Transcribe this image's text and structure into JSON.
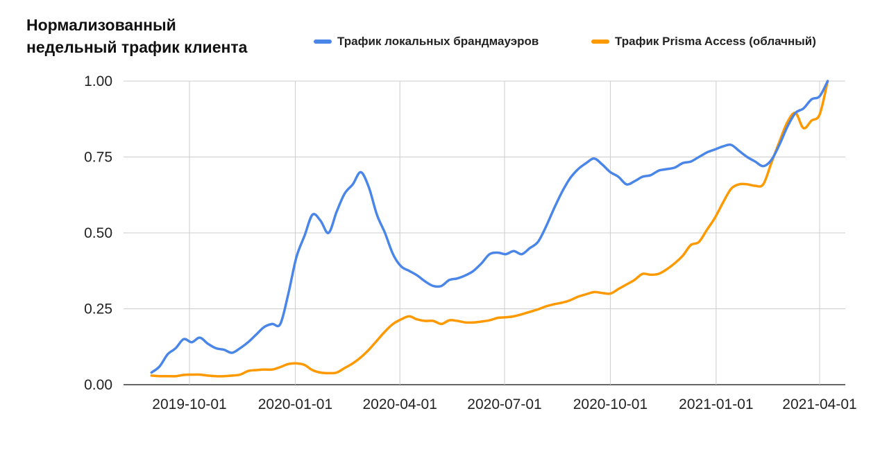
{
  "chart_data": {
    "type": "line",
    "title_lines": [
      "Нормализованный",
      "недельный трафик клиента"
    ],
    "xlabel": "",
    "ylabel": "",
    "x_dates": [
      "2019-08-29",
      "2019-09-05",
      "2019-09-12",
      "2019-09-19",
      "2019-09-26",
      "2019-10-03",
      "2019-10-10",
      "2019-10-17",
      "2019-10-24",
      "2019-10-31",
      "2019-11-07",
      "2019-11-14",
      "2019-11-21",
      "2019-11-28",
      "2019-12-05",
      "2019-12-12",
      "2019-12-19",
      "2019-12-26",
      "2020-01-02",
      "2020-01-09",
      "2020-01-16",
      "2020-01-23",
      "2020-01-30",
      "2020-02-06",
      "2020-02-13",
      "2020-02-20",
      "2020-02-27",
      "2020-03-05",
      "2020-03-12",
      "2020-03-19",
      "2020-03-26",
      "2020-04-02",
      "2020-04-09",
      "2020-04-16",
      "2020-04-23",
      "2020-04-30",
      "2020-05-07",
      "2020-05-14",
      "2020-05-21",
      "2020-05-28",
      "2020-06-04",
      "2020-06-11",
      "2020-06-18",
      "2020-06-25",
      "2020-07-02",
      "2020-07-09",
      "2020-07-16",
      "2020-07-23",
      "2020-07-30",
      "2020-08-06",
      "2020-08-13",
      "2020-08-20",
      "2020-08-27",
      "2020-09-03",
      "2020-09-10",
      "2020-09-17",
      "2020-09-24",
      "2020-10-01",
      "2020-10-08",
      "2020-10-15",
      "2020-10-22",
      "2020-10-29",
      "2020-11-05",
      "2020-11-12",
      "2020-11-19",
      "2020-11-26",
      "2020-12-03",
      "2020-12-10",
      "2020-12-17",
      "2020-12-24",
      "2020-12-31",
      "2021-01-07",
      "2021-01-14",
      "2021-01-21",
      "2021-01-28",
      "2021-02-04",
      "2021-02-11",
      "2021-02-18",
      "2021-02-25",
      "2021-03-04",
      "2021-03-11",
      "2021-03-18",
      "2021-03-25",
      "2021-04-01",
      "2021-04-08"
    ],
    "series": [
      {
        "name": "Трафик локальных брандмауэров",
        "color": "#4a86e8",
        "values": [
          0.04,
          0.06,
          0.1,
          0.12,
          0.15,
          0.14,
          0.155,
          0.135,
          0.12,
          0.115,
          0.105,
          0.12,
          0.14,
          0.165,
          0.19,
          0.2,
          0.2,
          0.3,
          0.42,
          0.49,
          0.56,
          0.54,
          0.5,
          0.57,
          0.63,
          0.66,
          0.7,
          0.65,
          0.56,
          0.5,
          0.43,
          0.39,
          0.375,
          0.36,
          0.34,
          0.325,
          0.325,
          0.345,
          0.35,
          0.36,
          0.375,
          0.4,
          0.43,
          0.435,
          0.43,
          0.44,
          0.43,
          0.45,
          0.47,
          0.52,
          0.58,
          0.635,
          0.68,
          0.71,
          0.73,
          0.745,
          0.725,
          0.7,
          0.685,
          0.66,
          0.67,
          0.685,
          0.69,
          0.705,
          0.71,
          0.715,
          0.73,
          0.735,
          0.75,
          0.765,
          0.775,
          0.785,
          0.79,
          0.77,
          0.75,
          0.735,
          0.72,
          0.74,
          0.79,
          0.85,
          0.895,
          0.91,
          0.94,
          0.95,
          1.0
        ]
      },
      {
        "name": "Трафик Prisma Access (облачный)",
        "color": "#ff9900",
        "values": [
          0.03,
          0.028,
          0.028,
          0.028,
          0.032,
          0.033,
          0.033,
          0.03,
          0.028,
          0.028,
          0.03,
          0.033,
          0.045,
          0.048,
          0.05,
          0.05,
          0.058,
          0.068,
          0.07,
          0.065,
          0.048,
          0.04,
          0.038,
          0.04,
          0.055,
          0.07,
          0.09,
          0.115,
          0.145,
          0.175,
          0.2,
          0.215,
          0.225,
          0.215,
          0.21,
          0.21,
          0.2,
          0.212,
          0.21,
          0.205,
          0.205,
          0.208,
          0.212,
          0.22,
          0.222,
          0.225,
          0.232,
          0.24,
          0.248,
          0.258,
          0.265,
          0.27,
          0.278,
          0.29,
          0.298,
          0.305,
          0.302,
          0.3,
          0.315,
          0.33,
          0.345,
          0.365,
          0.362,
          0.365,
          0.38,
          0.4,
          0.425,
          0.46,
          0.47,
          0.51,
          0.55,
          0.6,
          0.645,
          0.66,
          0.66,
          0.655,
          0.66,
          0.73,
          0.8,
          0.865,
          0.895,
          0.845,
          0.87,
          0.89,
          1.0
        ]
      }
    ],
    "ylim": [
      0,
      1
    ],
    "yticks": [
      "0.00",
      "0.25",
      "0.50",
      "0.75",
      "1.00"
    ],
    "xticks": [
      "2019-10-01",
      "2020-01-01",
      "2020-04-01",
      "2020-07-01",
      "2020-10-01",
      "2021-01-01",
      "2021-04-01"
    ],
    "grid": true,
    "legend_position": "top"
  }
}
